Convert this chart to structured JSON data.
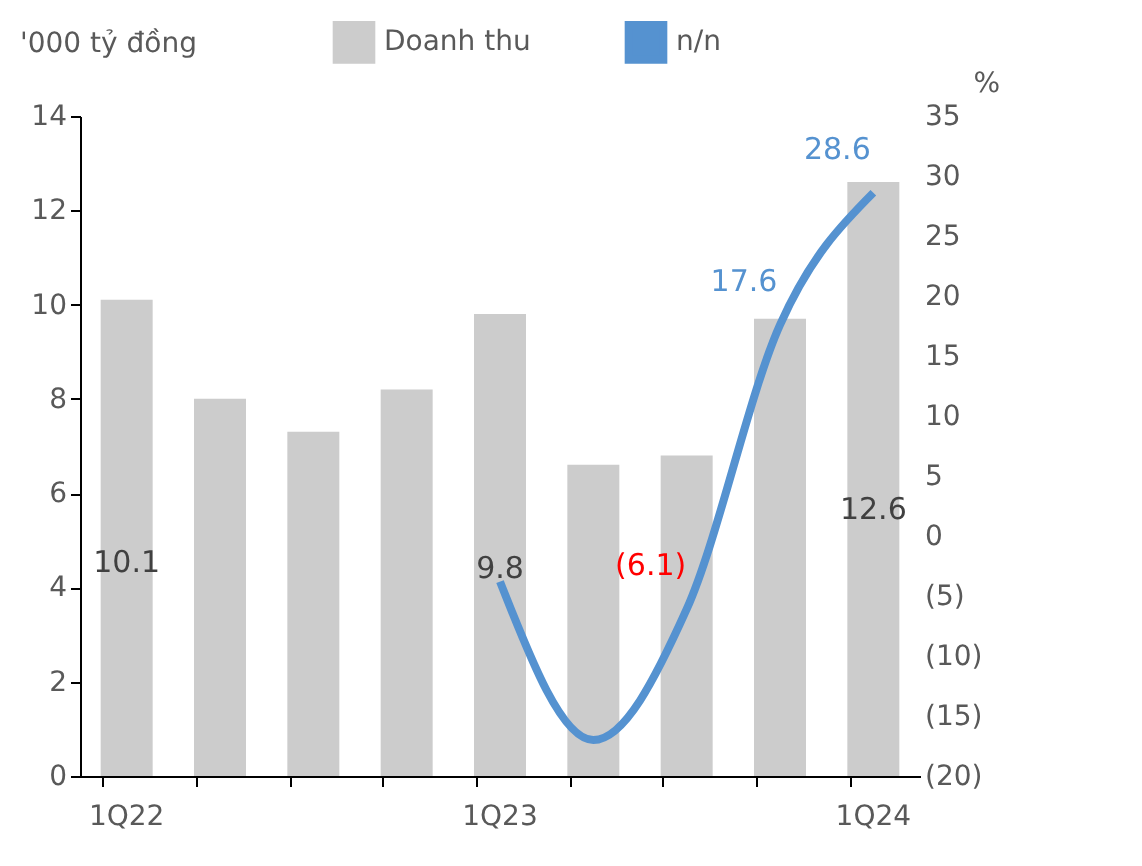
{
  "chart_data": {
    "type": "bar",
    "categories": [
      "1Q22",
      null,
      null,
      null,
      "1Q23",
      null,
      null,
      null,
      "1Q24"
    ],
    "ylabel": "'000 tỷ đồng",
    "y2label": "%",
    "series": [
      {
        "name": "Doanh thu",
        "color": "#cccccc",
        "values": [
          10.1,
          8.0,
          7.3,
          8.2,
          9.8,
          6.6,
          6.8,
          9.7,
          12.6
        ],
        "value_labels": [
          "10.1",
          null,
          null,
          null,
          "9.8",
          null,
          null,
          null,
          "12.6"
        ]
      },
      {
        "name": "n/n",
        "type": "line",
        "axis": "y2",
        "color": "#5592d0",
        "values": [
          null,
          null,
          null,
          null,
          -3.8,
          -17.0,
          -6.1,
          17.6,
          28.6
        ],
        "value_labels": [
          null,
          null,
          null,
          null,
          null,
          null,
          "(6.1)",
          "17.6",
          "28.6"
        ]
      }
    ],
    "ylim": [
      0,
      14
    ],
    "yticks": [
      0,
      2,
      4,
      6,
      8,
      10,
      12,
      14
    ],
    "y2lim": [
      -20,
      35
    ],
    "y2ticks": [
      {
        "value": -20,
        "label": "(20)"
      },
      {
        "value": -15,
        "label": "(15)"
      },
      {
        "value": -10,
        "label": "(10)"
      },
      {
        "value": -5,
        "label": "(5)"
      },
      0,
      5,
      10,
      15,
      20,
      25,
      30,
      35
    ],
    "legend": "top",
    "grid": false
  }
}
